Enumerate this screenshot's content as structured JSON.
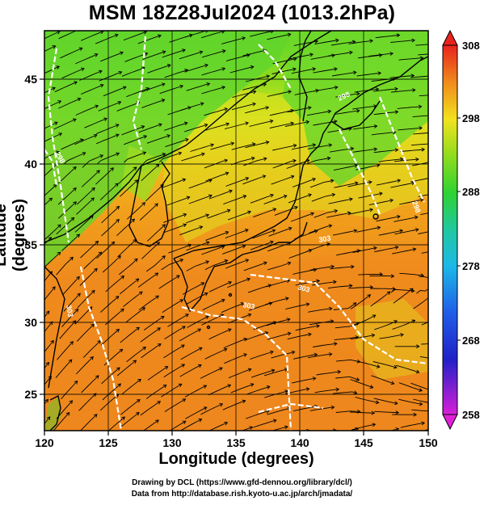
{
  "title": "MSM 18Z28Jul2024 (1013.2hPa)",
  "x_axis": {
    "label": "Longitude (degrees)",
    "ticks": [
      "120",
      "125",
      "130",
      "135",
      "140",
      "145",
      "150"
    ]
  },
  "y_axis": {
    "label": "Latitude  (degrees)",
    "ticks": [
      "25",
      "30",
      "35",
      "40",
      "45"
    ]
  },
  "colorbar": {
    "ticks": [
      "308",
      "298",
      "288",
      "278",
      "268",
      "258"
    ],
    "min": 258,
    "max": 308
  },
  "contour_labels": [
    "303",
    "303",
    "303",
    "303",
    "298",
    "298",
    "298"
  ],
  "credits": {
    "line1": "Drawing by DCL (https://www.gfd-dennou.org/library/dcl/)",
    "line2": "Data from http://database.rish.kyoto-u.ac.jp/arch/jmadata/"
  },
  "colors": {
    "warm": "#f08c1c",
    "yellow": "#f2e020",
    "green": "#3fd12a",
    "land_outline": "#000000",
    "isotherm": "#ffffff"
  }
}
